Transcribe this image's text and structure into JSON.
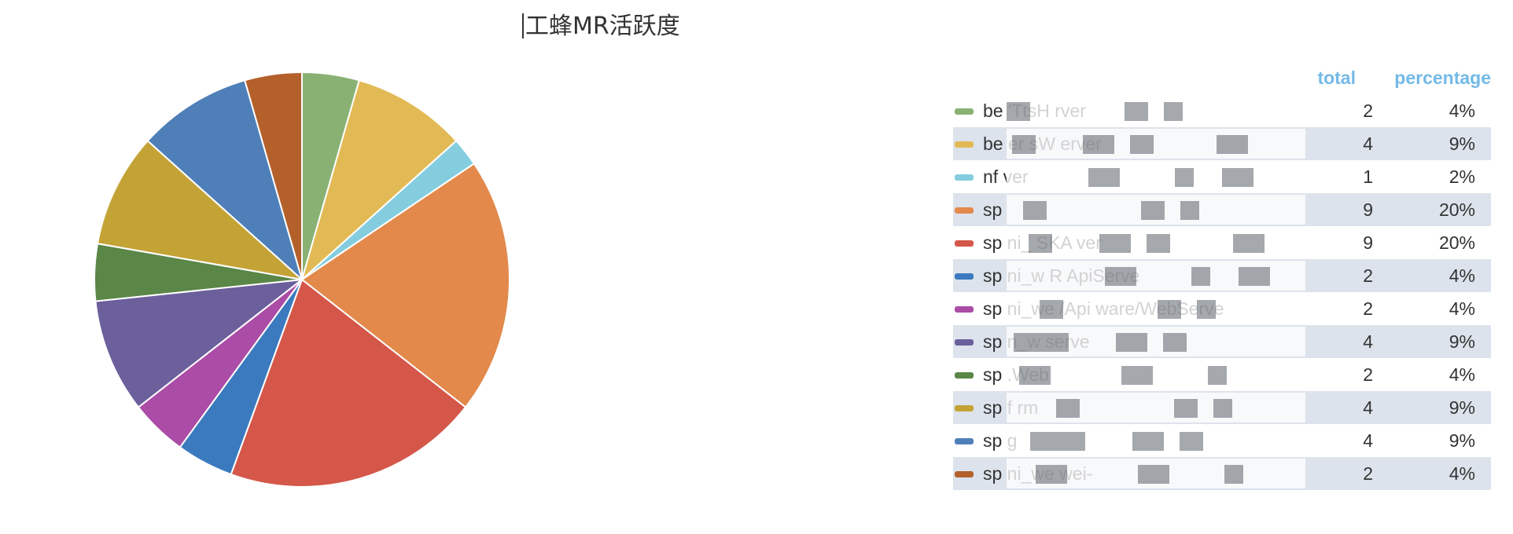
{
  "title": "工蜂MR活跃度",
  "header": {
    "total": "total",
    "percentage": "percentage",
    "color": "#74b9e7"
  },
  "chart_data": {
    "type": "pie",
    "title": "工蜂MR活跃度",
    "categories": [
      "be          'TtsH        rver",
      "be     er       sW      erver",
      "nf                                  ver",
      "sp",
      "sp   ni_      SKA    ver",
      "sp      ni_w      R            ApiServe",
      "sp      ni_we    /Api          ware/WebServe",
      "sp      n_w                         serve",
      "sp                                        .Web",
      "sp     f                           rm",
      "sp                                              g",
      "sp      ni_we                              wei-"
    ],
    "values": [
      2,
      4,
      1,
      9,
      9,
      2,
      2,
      4,
      2,
      4,
      4,
      2
    ],
    "percentages": [
      "4%",
      "9%",
      "2%",
      "20%",
      "20%",
      "4%",
      "4%",
      "9%",
      "4%",
      "9%",
      "9%",
      "4%"
    ],
    "colors": [
      "#89b174",
      "#e2ba55",
      "#84cddf",
      "#e2894b",
      "#d4574a",
      "#3b7abf",
      "#ab4ca6",
      "#6b5f9c",
      "#5a8648",
      "#c4a336",
      "#4f7fb8",
      "#b3602b"
    ]
  }
}
